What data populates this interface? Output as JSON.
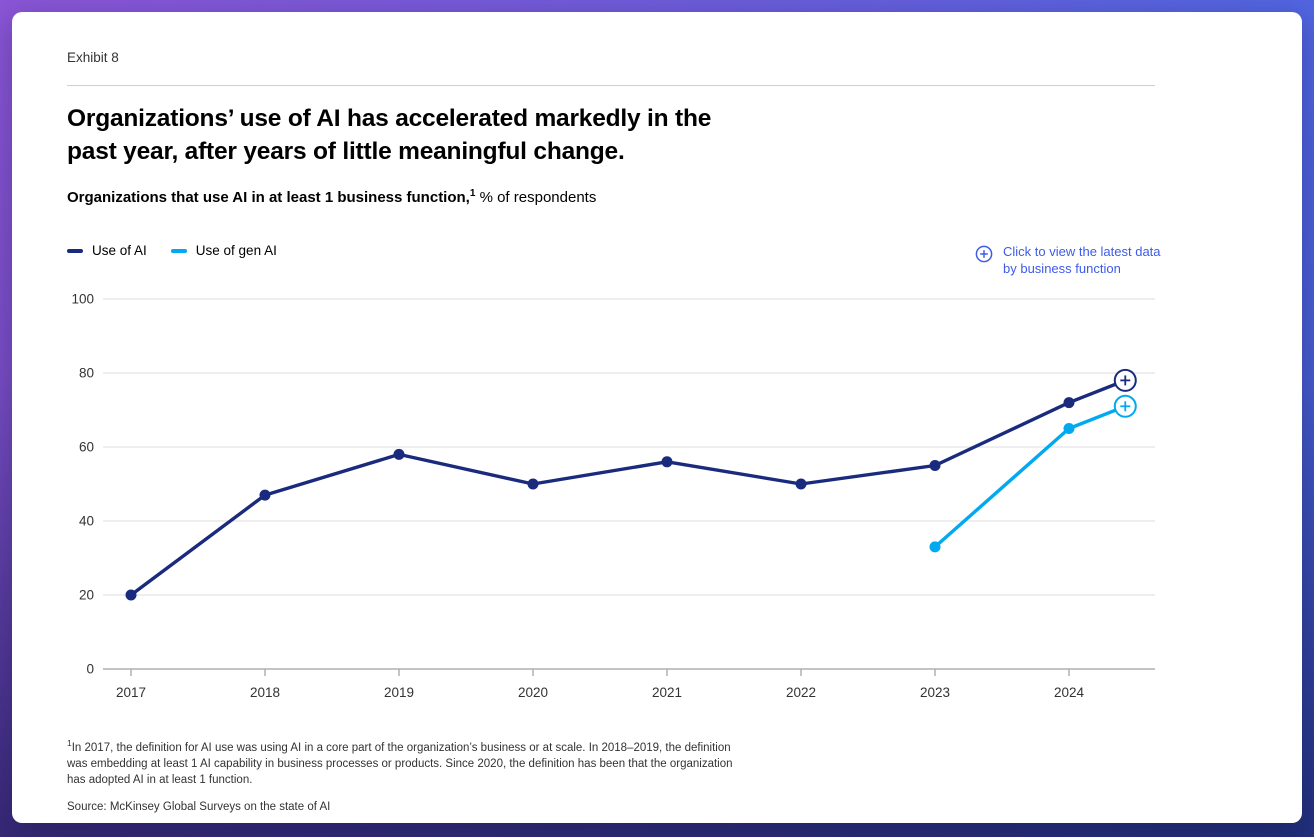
{
  "page": {
    "exhibit_label": "Exhibit 8",
    "title": "Organizations’ use of AI has accelerated markedly in the past year, after years of little meaningful change.",
    "subtitle_bold": "Organizations that use AI in at least 1 business function,",
    "subtitle_sup": "1",
    "subtitle_rest": " % of respondents",
    "link": {
      "icon": "circle-plus-icon",
      "text": "Click to view the latest data by business function",
      "color": "#3d5be8"
    },
    "footnote_sup": "1",
    "footnote": "In 2017, the definition for AI use was using AI in a core part of the organization’s business or at scale. In 2018–2019, the definition was embedding at least 1 AI capability in business processes or products. Since 2020, the definition has been that the organization has adopted AI in at least 1 function.",
    "source": "Source: McKinsey Global Surveys on the state of AI"
  },
  "chart_data": {
    "type": "line",
    "title": "Organizations that use AI in at least 1 business function, % of respondents",
    "xlabel": "",
    "ylabel": "% of respondents",
    "x_labels": [
      "2017",
      "2018",
      "2019",
      "2020",
      "2021",
      "2022",
      "2023",
      "2024"
    ],
    "ylim": [
      0,
      100
    ],
    "yticks": [
      0,
      20,
      40,
      60,
      80,
      100
    ],
    "grid": "horizontal",
    "legend_position": "top-left",
    "colors": {
      "grid": "#dcdcdc",
      "axis": "#b0b0b0",
      "tick_text": "#333333"
    },
    "series": [
      {
        "name": "Use of AI",
        "color": "#1a2b7d",
        "x": [
          2017,
          2018,
          2019,
          2020,
          2021,
          2022,
          2023,
          2024
        ],
        "values": [
          20,
          47,
          58,
          50,
          56,
          50,
          55,
          72
        ],
        "latest": {
          "x": 2024.42,
          "value": 78
        }
      },
      {
        "name": "Use of gen AI",
        "color": "#00a9f0",
        "x": [
          2023,
          2024
        ],
        "values": [
          33,
          65
        ],
        "latest": {
          "x": 2024.42,
          "value": 71
        }
      }
    ]
  }
}
